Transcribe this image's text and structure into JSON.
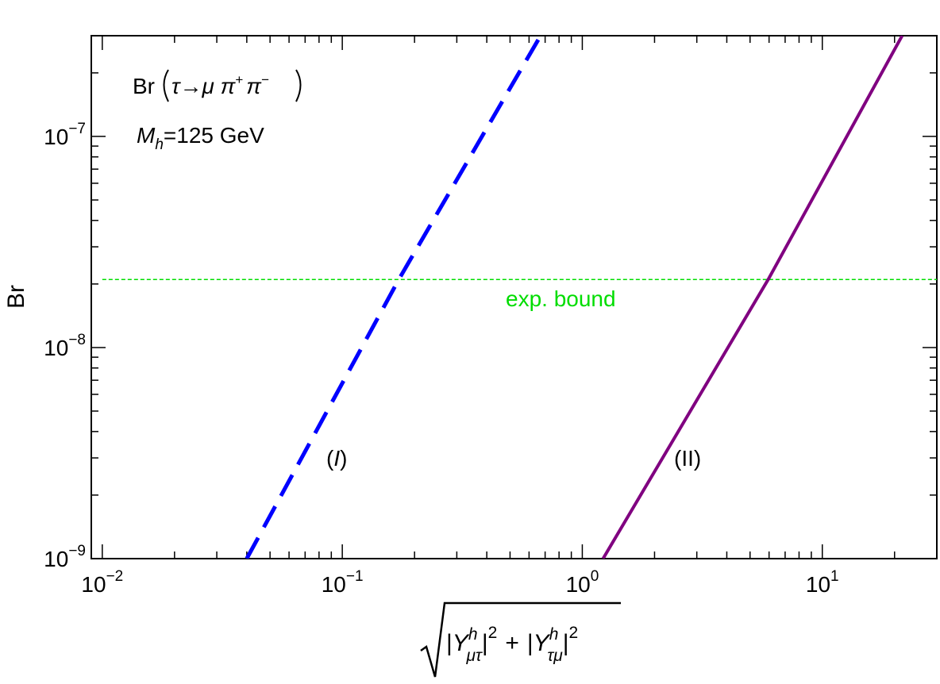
{
  "chart_data": {
    "type": "line",
    "xscale": "log",
    "yscale": "log",
    "xlim": [
      0.009,
      30
    ],
    "ylim": [
      1e-09,
      3e-07
    ],
    "ylabel": "Br",
    "x_ticks": [
      {
        "value": 0.01,
        "base": "10",
        "exp": "−2"
      },
      {
        "value": 0.1,
        "base": "10",
        "exp": "−1"
      },
      {
        "value": 1,
        "base": "10",
        "exp": "0"
      },
      {
        "value": 10,
        "base": "10",
        "exp": "1"
      }
    ],
    "y_ticks": [
      {
        "value": 1e-09,
        "base": "10",
        "exp": "−9"
      },
      {
        "value": 1e-08,
        "base": "10",
        "exp": "−8"
      },
      {
        "value": 1e-07,
        "base": "10",
        "exp": "−7"
      }
    ],
    "xlabel": {
      "y_symbol": "Y",
      "sup": "h",
      "sub1": "μτ",
      "sub2": "τμ",
      "power": "2",
      "plus": "+"
    },
    "annotations": {
      "process": {
        "prefix": "Br",
        "decay": "τ→μ π",
        "plus": "+",
        "pi": "π",
        "minus": "−"
      },
      "mass": {
        "symbol": "M",
        "sub": "h",
        "text": "=125 GeV"
      },
      "label_I": {
        "open": "(",
        "italic": "I",
        "close": ")"
      },
      "label_II": "(II)"
    },
    "series": [
      {
        "id": "I",
        "color": "#0000ff",
        "style": "dashed",
        "x": [
          0.04,
          0.172,
          0.67
        ],
        "y": [
          1e-09,
          2.1e-08,
          3e-07
        ]
      },
      {
        "id": "II",
        "color": "#800080",
        "style": "solid",
        "x": [
          1.22,
          5.95,
          21.5
        ],
        "y": [
          1e-09,
          2.1e-08,
          3e-07
        ]
      }
    ],
    "bound": {
      "name": "exp. bound",
      "value": 2.1e-08,
      "x_range": [
        0.01,
        30
      ],
      "color": "#00dd00",
      "style": "dashed"
    }
  }
}
